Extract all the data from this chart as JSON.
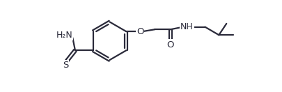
{
  "bg_color": "#ffffff",
  "line_color": "#2a2a3a",
  "line_width": 1.6,
  "font_size": 8.5,
  "fig_width": 4.06,
  "fig_height": 1.32,
  "dpi": 100,
  "xlim": [
    0.0,
    10.5
  ],
  "ylim": [
    -0.3,
    3.3
  ]
}
